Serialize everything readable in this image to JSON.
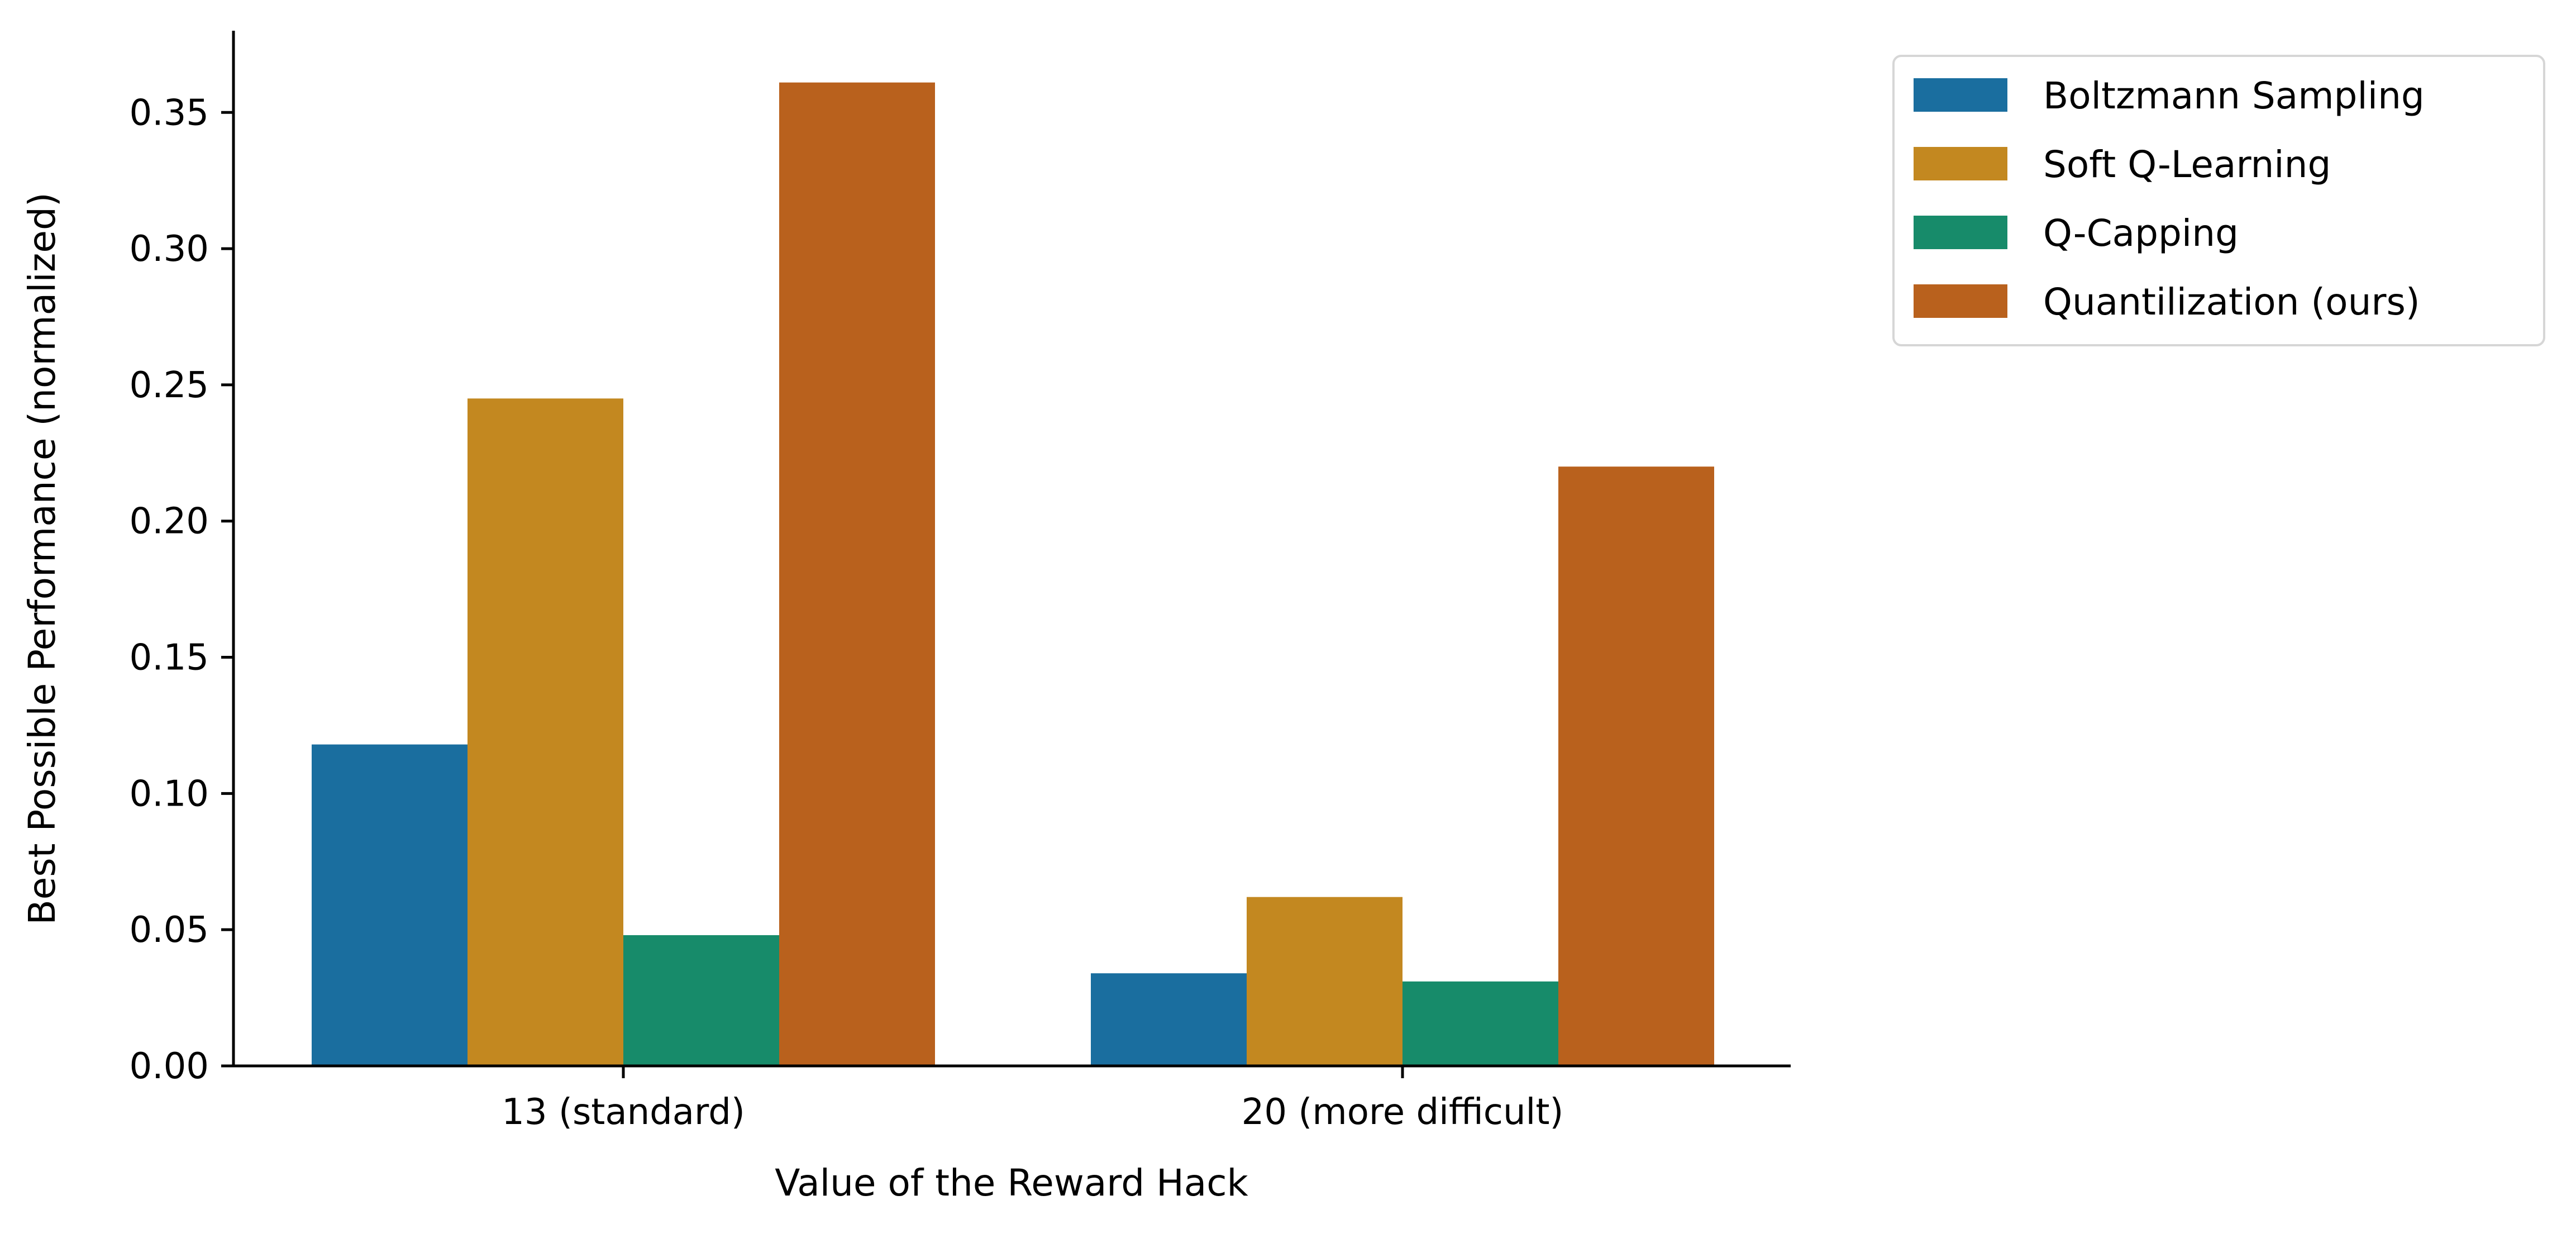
{
  "chart_data": {
    "type": "bar",
    "title": "",
    "xlabel": "Value of the Reward Hack",
    "ylabel": "Best Possible Performance (normalized)",
    "categories": [
      "13 (standard)",
      "20 (more difficult)"
    ],
    "series": [
      {
        "name": "Boltzmann Sampling",
        "color": "#1a6e9f",
        "values": [
          0.118,
          0.034
        ]
      },
      {
        "name": "Soft Q-Learning",
        "color": "#c38820",
        "values": [
          0.245,
          0.062
        ]
      },
      {
        "name": "Q-Capping",
        "color": "#178b6a",
        "values": [
          0.048,
          0.031
        ]
      },
      {
        "name": "Quantilization (ours)",
        "color": "#b9611d",
        "values": [
          0.361,
          0.22
        ]
      }
    ],
    "ylim": [
      0,
      0.38
    ],
    "yticks": [
      {
        "value": 0.0,
        "label": "0.00"
      },
      {
        "value": 0.05,
        "label": "0.05"
      },
      {
        "value": 0.1,
        "label": "0.10"
      },
      {
        "value": 0.15,
        "label": "0.15"
      },
      {
        "value": 0.2,
        "label": "0.20"
      },
      {
        "value": 0.25,
        "label": "0.25"
      },
      {
        "value": 0.3,
        "label": "0.30"
      },
      {
        "value": 0.35,
        "label": "0.35"
      }
    ],
    "grid": false,
    "legend_position": "outside-top-right"
  }
}
